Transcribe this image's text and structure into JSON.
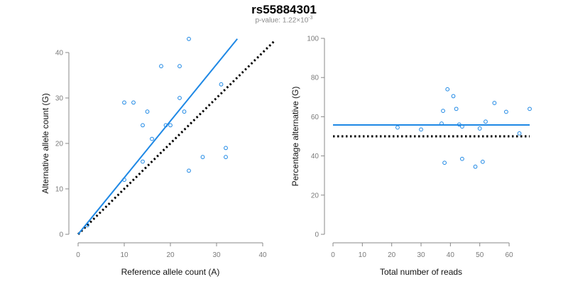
{
  "header": {
    "title": "rs55884301",
    "pvalue_prefix": "p-value: 1.22×10",
    "pvalue_exp": "-3"
  },
  "chart_data": [
    {
      "type": "scatter",
      "xlabel": "Reference allele count (A)",
      "ylabel": "Alternative allele count (G)",
      "xlim": [
        0,
        40
      ],
      "ylim": [
        0,
        40
      ],
      "xticks": [
        0,
        10,
        20,
        30,
        40
      ],
      "yticks": [
        0,
        10,
        20,
        30,
        40
      ],
      "points": [
        [
          10,
          29
        ],
        [
          12,
          29
        ],
        [
          14,
          24
        ],
        [
          15,
          27
        ],
        [
          16,
          21
        ],
        [
          18,
          37
        ],
        [
          19,
          24
        ],
        [
          20,
          24
        ],
        [
          22,
          37
        ],
        [
          22,
          30
        ],
        [
          23,
          27
        ],
        [
          24,
          43
        ],
        [
          10,
          12
        ],
        [
          14,
          16
        ],
        [
          24,
          14
        ],
        [
          27,
          17
        ],
        [
          31,
          33
        ],
        [
          32,
          19
        ],
        [
          32,
          17
        ],
        [
          2,
          2
        ]
      ],
      "fit_line": [
        [
          0,
          0
        ],
        [
          34.5,
          43
        ]
      ],
      "reference_line": [
        [
          0,
          0
        ],
        [
          42.5,
          42.5
        ]
      ],
      "colors": {
        "points": "#1e88e5",
        "fit": "#1e88e5",
        "reference": "#000000"
      }
    },
    {
      "type": "scatter",
      "xlabel": "Total number of reads",
      "ylabel": "Percentage alternative (G)",
      "xlim": [
        0,
        67
      ],
      "ylim": [
        0,
        100
      ],
      "xticks": [
        0,
        10,
        20,
        30,
        40,
        50,
        60
      ],
      "yticks": [
        0,
        20,
        40,
        60,
        80,
        100
      ],
      "points": [
        [
          22,
          54.5
        ],
        [
          30,
          53.5
        ],
        [
          37,
          56.5
        ],
        [
          37.5,
          63
        ],
        [
          38,
          36.5
        ],
        [
          39,
          74
        ],
        [
          41,
          70.5
        ],
        [
          42,
          64
        ],
        [
          43,
          56
        ],
        [
          44,
          55
        ],
        [
          44,
          38.5
        ],
        [
          48.5,
          34.5
        ],
        [
          50,
          54
        ],
        [
          51,
          37
        ],
        [
          52,
          57.5
        ],
        [
          55,
          67
        ],
        [
          59,
          62.5
        ],
        [
          63.5,
          51.5
        ],
        [
          67,
          64
        ]
      ],
      "fit_line": [
        [
          0,
          55.8
        ],
        [
          67,
          55.8
        ]
      ],
      "reference_line": [
        [
          0,
          50
        ],
        [
          67,
          50
        ]
      ],
      "colors": {
        "points": "#1e88e5",
        "fit": "#1e88e5",
        "reference": "#000000"
      }
    }
  ]
}
